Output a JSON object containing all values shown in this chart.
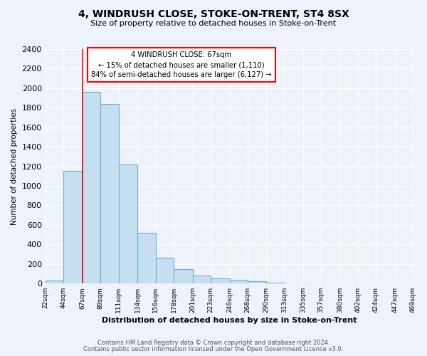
{
  "title": "4, WINDRUSH CLOSE, STOKE-ON-TRENT, ST4 8SX",
  "subtitle": "Size of property relative to detached houses in Stoke-on-Trent",
  "xlabel": "Distribution of detached houses by size in Stoke-on-Trent",
  "ylabel": "Number of detached properties",
  "bin_edges": [
    22,
    44,
    67,
    89,
    111,
    134,
    156,
    178,
    201,
    223,
    246,
    268,
    290,
    313,
    335,
    357,
    380,
    402,
    424,
    447,
    469
  ],
  "bar_heights": [
    30,
    1150,
    1960,
    1840,
    1220,
    520,
    265,
    150,
    80,
    50,
    35,
    25,
    10,
    5,
    3,
    2,
    2,
    1,
    1,
    1
  ],
  "bar_color": "#c6dff0",
  "bar_edge_color": "#6aaed6",
  "vline_x": 67,
  "vline_color": "red",
  "annotation_title": "4 WINDRUSH CLOSE: 67sqm",
  "annotation_line1": "← 15% of detached houses are smaller (1,110)",
  "annotation_line2": "84% of semi-detached houses are larger (6,127) →",
  "annotation_box_color": "white",
  "annotation_box_edge": "red",
  "ylim": [
    0,
    2400
  ],
  "yticks": [
    0,
    200,
    400,
    600,
    800,
    1000,
    1200,
    1400,
    1600,
    1800,
    2000,
    2200,
    2400
  ],
  "tick_labels": [
    "22sqm",
    "44sqm",
    "67sqm",
    "89sqm",
    "111sqm",
    "134sqm",
    "156sqm",
    "178sqm",
    "201sqm",
    "223sqm",
    "246sqm",
    "268sqm",
    "290sqm",
    "313sqm",
    "335sqm",
    "357sqm",
    "380sqm",
    "402sqm",
    "424sqm",
    "447sqm",
    "469sqm"
  ],
  "bg_color": "#eef2fb",
  "grid_color": "#ffffff",
  "footer_line1": "Contains HM Land Registry data © Crown copyright and database right 2024.",
  "footer_line2": "Contains public sector information licensed under the Open Government Licence v3.0."
}
